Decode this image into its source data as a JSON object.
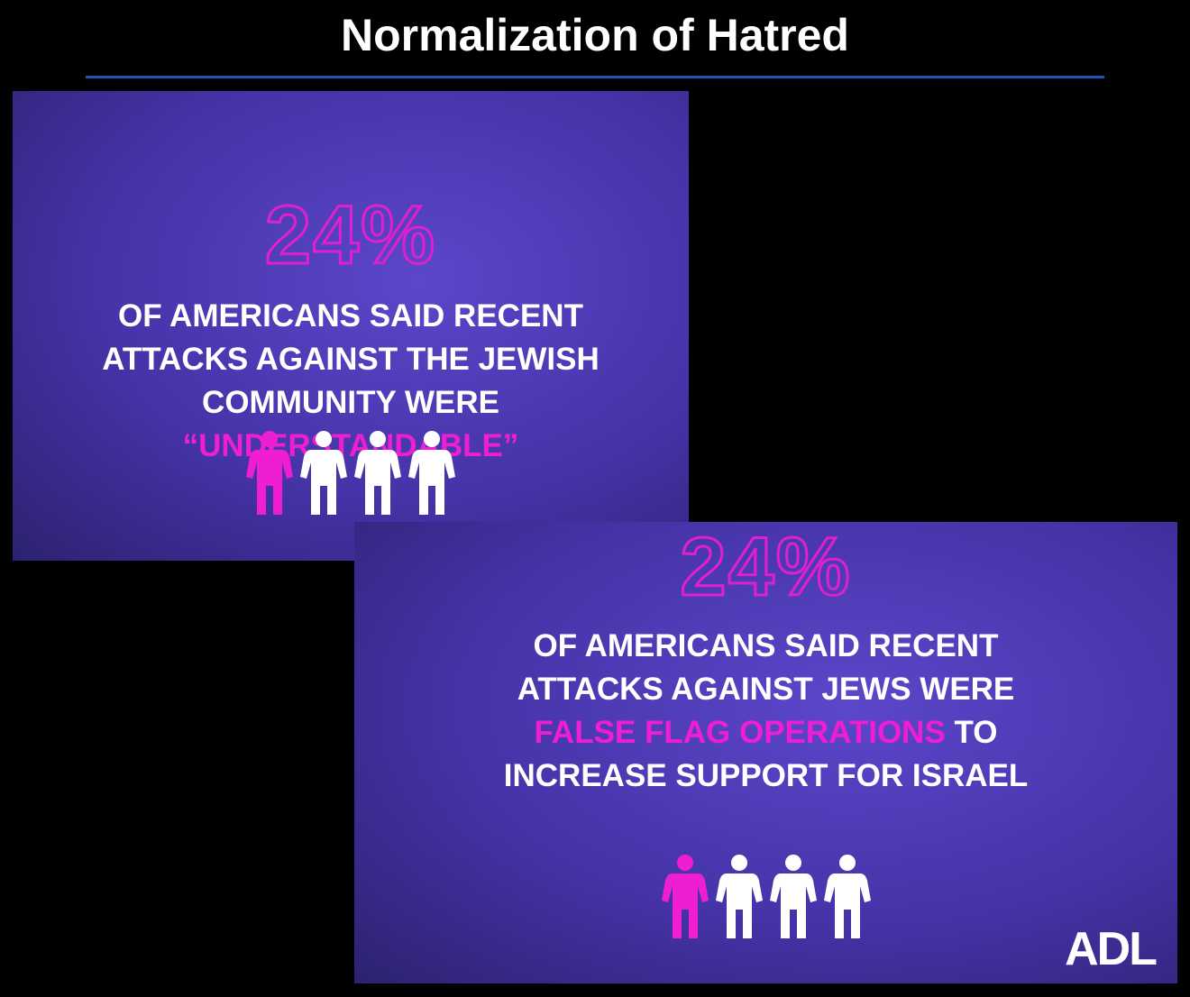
{
  "title": "Normalization of Hatred",
  "cards": [
    {
      "stat": "24%",
      "lines": [
        [
          {
            "text": "OF AMERICANS SAID RECENT"
          }
        ],
        [
          {
            "text": "ATTACKS AGAINST THE JEWISH"
          }
        ],
        [
          {
            "text": "COMMUNITY WERE"
          }
        ],
        [
          {
            "text": "“UNDERSTANDABLE”",
            "highlight": true
          }
        ]
      ]
    },
    {
      "stat": "24%",
      "lines": [
        [
          {
            "text": "OF AMERICANS SAID RECENT"
          }
        ],
        [
          {
            "text": "ATTACKS AGAINST JEWS WERE"
          }
        ],
        [
          {
            "text": "FALSE FLAG OPERATIONS",
            "highlight": true
          },
          {
            "text": " TO"
          }
        ],
        [
          {
            "text": "INCREASE SUPPORT FOR ISRAEL"
          }
        ]
      ],
      "logo": "ADL"
    }
  ]
}
